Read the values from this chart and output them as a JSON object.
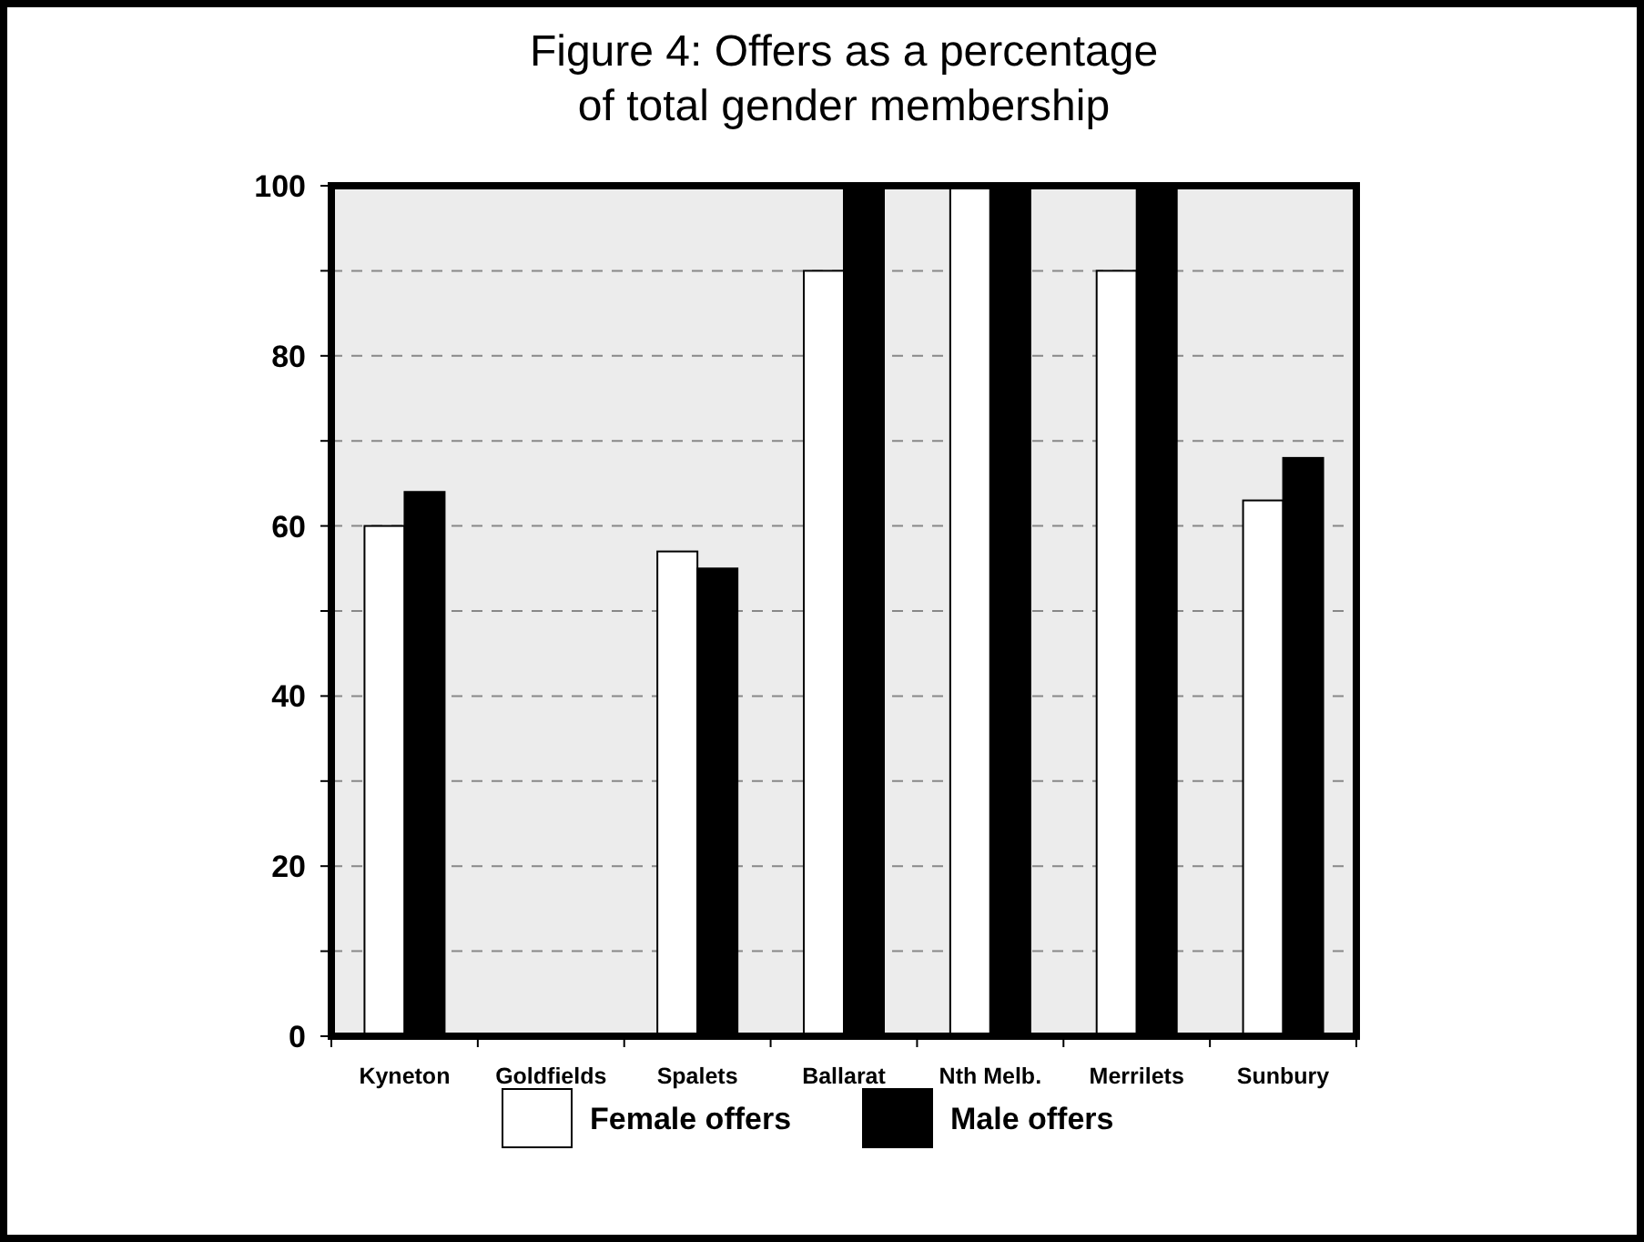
{
  "chart_data": {
    "type": "bar",
    "title": "Figure 4: Offers as a percentage of total gender membership",
    "categories": [
      "Kyneton",
      "Goldfields",
      "Spalets",
      "Ballarat",
      "Nth Melb.",
      "Merrilets",
      "Sunbury"
    ],
    "series": [
      {
        "name": "Female offers",
        "color": "#ffffff",
        "values": [
          60,
          null,
          57,
          90,
          100,
          90,
          63
        ]
      },
      {
        "name": "Male offers",
        "color": "#000000",
        "values": [
          64,
          null,
          55,
          100,
          100,
          100,
          68
        ]
      }
    ],
    "ylim": [
      0,
      100
    ],
    "yticks": [
      0,
      {
        "value": 10,
        "label": null
      },
      20,
      {
        "value": 30,
        "label": null
      },
      40,
      {
        "value": 50,
        "label": null
      },
      60,
      {
        "value": 70,
        "label": null
      },
      80,
      {
        "value": 90,
        "label": null
      },
      100
    ],
    "grid": "y",
    "legend": "bottom"
  }
}
